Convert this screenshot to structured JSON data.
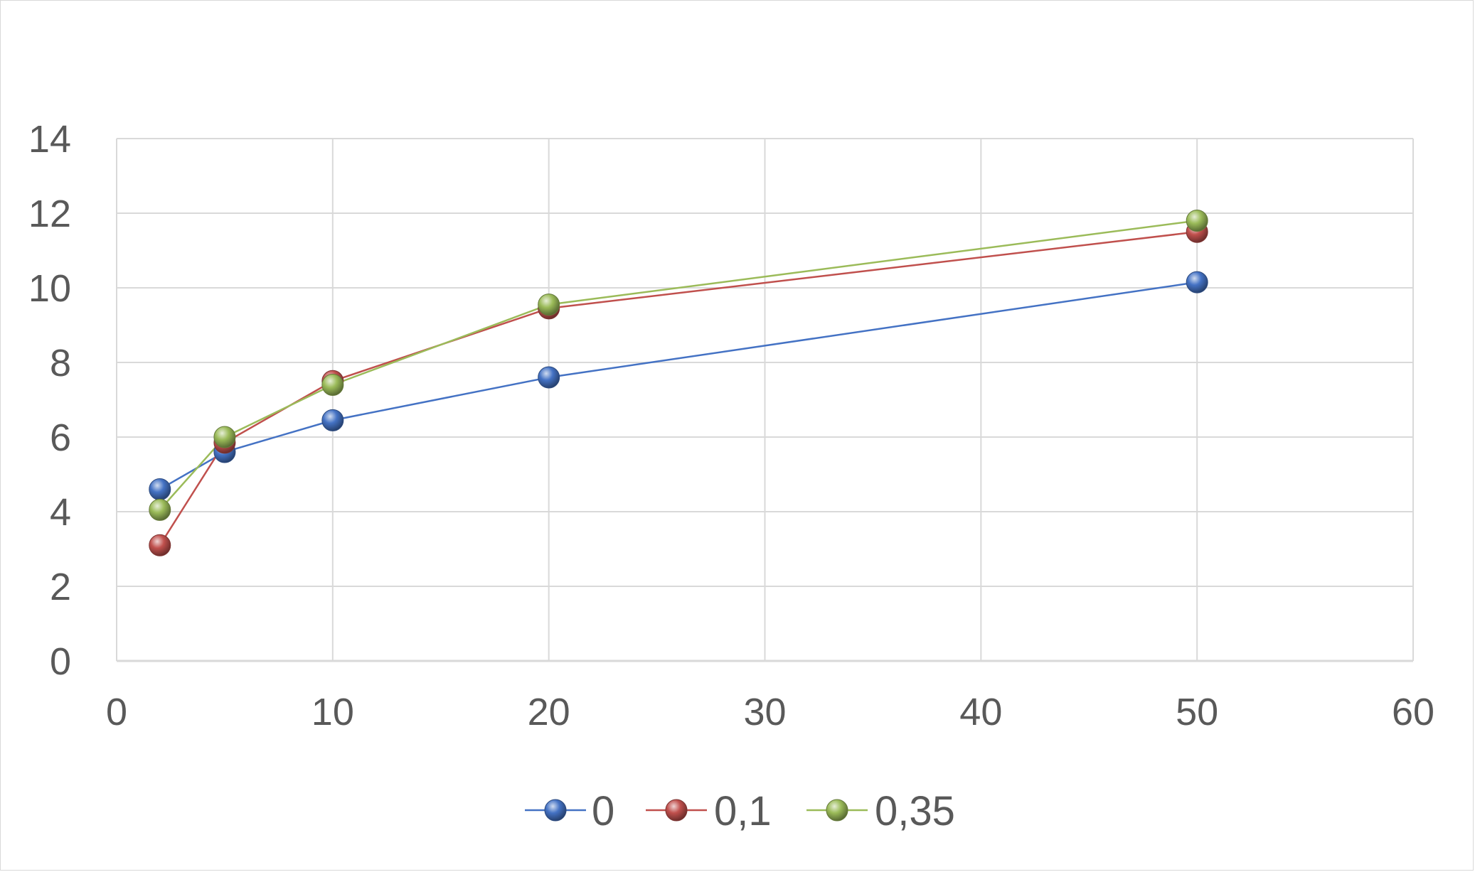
{
  "chart_data": {
    "type": "scatter",
    "title": "",
    "xlabel": "",
    "ylabel": "",
    "xlim": [
      0,
      60
    ],
    "ylim": [
      0,
      14
    ],
    "x_ticks": [
      0,
      10,
      20,
      30,
      40,
      50,
      60
    ],
    "y_ticks": [
      0,
      2,
      4,
      6,
      8,
      10,
      12,
      14
    ],
    "grid": true,
    "legend_position": "bottom",
    "series": [
      {
        "name": "0",
        "color": "#4472C4",
        "points": [
          {
            "x": 2,
            "y": 4.6
          },
          {
            "x": 5,
            "y": 5.6
          },
          {
            "x": 10,
            "y": 6.45
          },
          {
            "x": 20,
            "y": 7.6
          },
          {
            "x": 50,
            "y": 10.15
          }
        ]
      },
      {
        "name": "0,1",
        "color": "#C0504D",
        "points": [
          {
            "x": 2,
            "y": 3.1
          },
          {
            "x": 5,
            "y": 5.85
          },
          {
            "x": 10,
            "y": 7.5
          },
          {
            "x": 20,
            "y": 9.45
          },
          {
            "x": 50,
            "y": 11.5
          }
        ]
      },
      {
        "name": "0,35",
        "color": "#9BBB59",
        "points": [
          {
            "x": 2,
            "y": 4.05
          },
          {
            "x": 5,
            "y": 6.0
          },
          {
            "x": 10,
            "y": 7.4
          },
          {
            "x": 20,
            "y": 9.55
          },
          {
            "x": 50,
            "y": 11.8
          }
        ]
      }
    ]
  }
}
